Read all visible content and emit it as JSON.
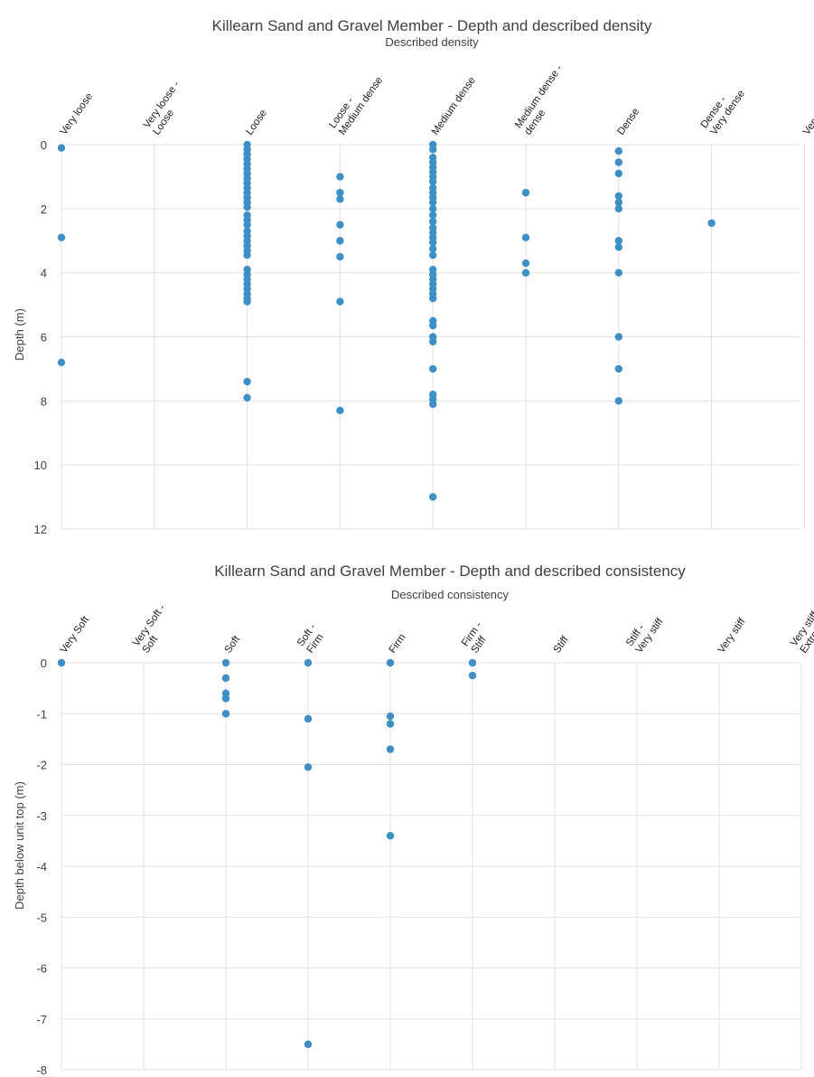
{
  "chart_data": [
    {
      "type": "scatter",
      "title": "Killearn Sand and Gravel Member - Depth and described density",
      "xlabel": "Described density",
      "ylabel": "Depth (m)",
      "categories": [
        "Very loose",
        "Very loose - Loose",
        "Loose",
        "Loose - Medium dense",
        "Medium dense",
        "Medium dense - dense",
        "Dense",
        "Dense - Very dense",
        "Very dense"
      ],
      "category_labels": [
        [
          "Very loose"
        ],
        [
          "Very loose -",
          "Loose"
        ],
        [
          "Loose"
        ],
        [
          "Loose -",
          "Medium dense"
        ],
        [
          "Medium dense"
        ],
        [
          "Medium dense -",
          "dense"
        ],
        [
          "Dense"
        ],
        [
          "Dense -",
          "Very dense"
        ],
        [
          "Very dense"
        ]
      ],
      "yticks": [
        "0",
        "2",
        "4",
        "6",
        "8",
        "10",
        "12"
      ],
      "ylim": [
        0,
        12
      ],
      "y_axis": "reversed",
      "grid": true,
      "series": [
        {
          "points": [
            [
              "Very loose",
              0.1
            ],
            [
              "Very loose",
              2.9
            ],
            [
              "Very loose",
              6.8
            ],
            [
              "Loose",
              0.0
            ],
            [
              "Loose",
              0.15
            ],
            [
              "Loose",
              0.3
            ],
            [
              "Loose",
              0.45
            ],
            [
              "Loose",
              0.6
            ],
            [
              "Loose",
              0.75
            ],
            [
              "Loose",
              0.9
            ],
            [
              "Loose",
              1.05
            ],
            [
              "Loose",
              1.2
            ],
            [
              "Loose",
              1.35
            ],
            [
              "Loose",
              1.5
            ],
            [
              "Loose",
              1.65
            ],
            [
              "Loose",
              1.8
            ],
            [
              "Loose",
              1.95
            ],
            [
              "Loose",
              2.2
            ],
            [
              "Loose",
              2.35
            ],
            [
              "Loose",
              2.5
            ],
            [
              "Loose",
              2.7
            ],
            [
              "Loose",
              2.85
            ],
            [
              "Loose",
              3.0
            ],
            [
              "Loose",
              3.15
            ],
            [
              "Loose",
              3.3
            ],
            [
              "Loose",
              3.45
            ],
            [
              "Loose",
              3.9
            ],
            [
              "Loose",
              4.05
            ],
            [
              "Loose",
              4.2
            ],
            [
              "Loose",
              4.35
            ],
            [
              "Loose",
              4.5
            ],
            [
              "Loose",
              4.65
            ],
            [
              "Loose",
              4.8
            ],
            [
              "Loose",
              4.9
            ],
            [
              "Loose",
              7.4
            ],
            [
              "Loose",
              7.9
            ],
            [
              "Loose - Medium dense",
              1.0
            ],
            [
              "Loose - Medium dense",
              1.5
            ],
            [
              "Loose - Medium dense",
              1.7
            ],
            [
              "Loose - Medium dense",
              2.5
            ],
            [
              "Loose - Medium dense",
              3.0
            ],
            [
              "Loose - Medium dense",
              3.5
            ],
            [
              "Loose - Medium dense",
              4.9
            ],
            [
              "Loose - Medium dense",
              8.3
            ],
            [
              "Medium dense",
              0.0
            ],
            [
              "Medium dense",
              0.15
            ],
            [
              "Medium dense",
              0.4
            ],
            [
              "Medium dense",
              0.55
            ],
            [
              "Medium dense",
              0.7
            ],
            [
              "Medium dense",
              0.85
            ],
            [
              "Medium dense",
              1.0
            ],
            [
              "Medium dense",
              1.15
            ],
            [
              "Medium dense",
              1.35
            ],
            [
              "Medium dense",
              1.5
            ],
            [
              "Medium dense",
              1.65
            ],
            [
              "Medium dense",
              1.8
            ],
            [
              "Medium dense",
              2.0
            ],
            [
              "Medium dense",
              2.2
            ],
            [
              "Medium dense",
              2.4
            ],
            [
              "Medium dense",
              2.6
            ],
            [
              "Medium dense",
              2.75
            ],
            [
              "Medium dense",
              2.9
            ],
            [
              "Medium dense",
              3.05
            ],
            [
              "Medium dense",
              3.25
            ],
            [
              "Medium dense",
              3.45
            ],
            [
              "Medium dense",
              3.9
            ],
            [
              "Medium dense",
              4.05
            ],
            [
              "Medium dense",
              4.2
            ],
            [
              "Medium dense",
              4.35
            ],
            [
              "Medium dense",
              4.5
            ],
            [
              "Medium dense",
              4.65
            ],
            [
              "Medium dense",
              4.8
            ],
            [
              "Medium dense",
              5.5
            ],
            [
              "Medium dense",
              5.65
            ],
            [
              "Medium dense",
              6.0
            ],
            [
              "Medium dense",
              6.15
            ],
            [
              "Medium dense",
              7.0
            ],
            [
              "Medium dense",
              7.8
            ],
            [
              "Medium dense",
              7.95
            ],
            [
              "Medium dense",
              8.1
            ],
            [
              "Medium dense",
              11.0
            ],
            [
              "Medium dense - dense",
              1.5
            ],
            [
              "Medium dense - dense",
              2.9
            ],
            [
              "Medium dense - dense",
              3.7
            ],
            [
              "Medium dense - dense",
              4.0
            ],
            [
              "Dense",
              0.2
            ],
            [
              "Dense",
              0.55
            ],
            [
              "Dense",
              0.9
            ],
            [
              "Dense",
              1.6
            ],
            [
              "Dense",
              1.8
            ],
            [
              "Dense",
              2.0
            ],
            [
              "Dense",
              3.0
            ],
            [
              "Dense",
              3.2
            ],
            [
              "Dense",
              4.0
            ],
            [
              "Dense",
              6.0
            ],
            [
              "Dense",
              7.0
            ],
            [
              "Dense",
              8.0
            ],
            [
              "Dense - Very dense",
              2.45
            ]
          ]
        }
      ]
    },
    {
      "type": "scatter",
      "title": "Killearn Sand and Gravel Member - Depth and described consistency",
      "xlabel": "Described consistency",
      "ylabel": "Depth below unit top (m)",
      "categories": [
        "Very Soft",
        "Very Soft - Soft",
        "Soft",
        "Soft - Firm",
        "Firm",
        "Firm - Stiff",
        "Stiff",
        "Stiff - Very stiff",
        "Very stiff",
        "Very stiff - Extremely weak"
      ],
      "category_labels": [
        [
          "Very Soft"
        ],
        [
          "Very Soft -",
          "Soft"
        ],
        [
          "Soft"
        ],
        [
          "Soft -",
          "Firm"
        ],
        [
          "Firm"
        ],
        [
          "Firm -",
          "Stiff"
        ],
        [
          "Stiff"
        ],
        [
          "Stiff -",
          "Very stiff"
        ],
        [
          "Very stiff"
        ],
        [
          "Very stiff -",
          "Extremely weak"
        ]
      ],
      "yticks": [
        "0",
        "-1",
        "-2",
        "-3",
        "-4",
        "-5",
        "-6",
        "-7",
        "-8"
      ],
      "ylim": [
        -8,
        0
      ],
      "grid": true,
      "series": [
        {
          "points": [
            [
              "Very Soft",
              0.0
            ],
            [
              "Soft",
              0.0
            ],
            [
              "Soft",
              -0.3
            ],
            [
              "Soft",
              -0.6
            ],
            [
              "Soft",
              -0.7
            ],
            [
              "Soft",
              -1.0
            ],
            [
              "Soft - Firm",
              0.0
            ],
            [
              "Soft - Firm",
              -1.1
            ],
            [
              "Soft - Firm",
              -2.05
            ],
            [
              "Soft - Firm",
              -7.5
            ],
            [
              "Firm",
              0.0
            ],
            [
              "Firm",
              -1.05
            ],
            [
              "Firm",
              -1.2
            ],
            [
              "Firm",
              -1.7
            ],
            [
              "Firm",
              -3.4
            ],
            [
              "Firm - Stiff",
              0.0
            ],
            [
              "Firm - Stiff",
              -0.25
            ]
          ]
        }
      ]
    }
  ],
  "colors": {
    "points": "#3d8fc5",
    "grid": "#e2e2e2",
    "text": "#404040"
  }
}
